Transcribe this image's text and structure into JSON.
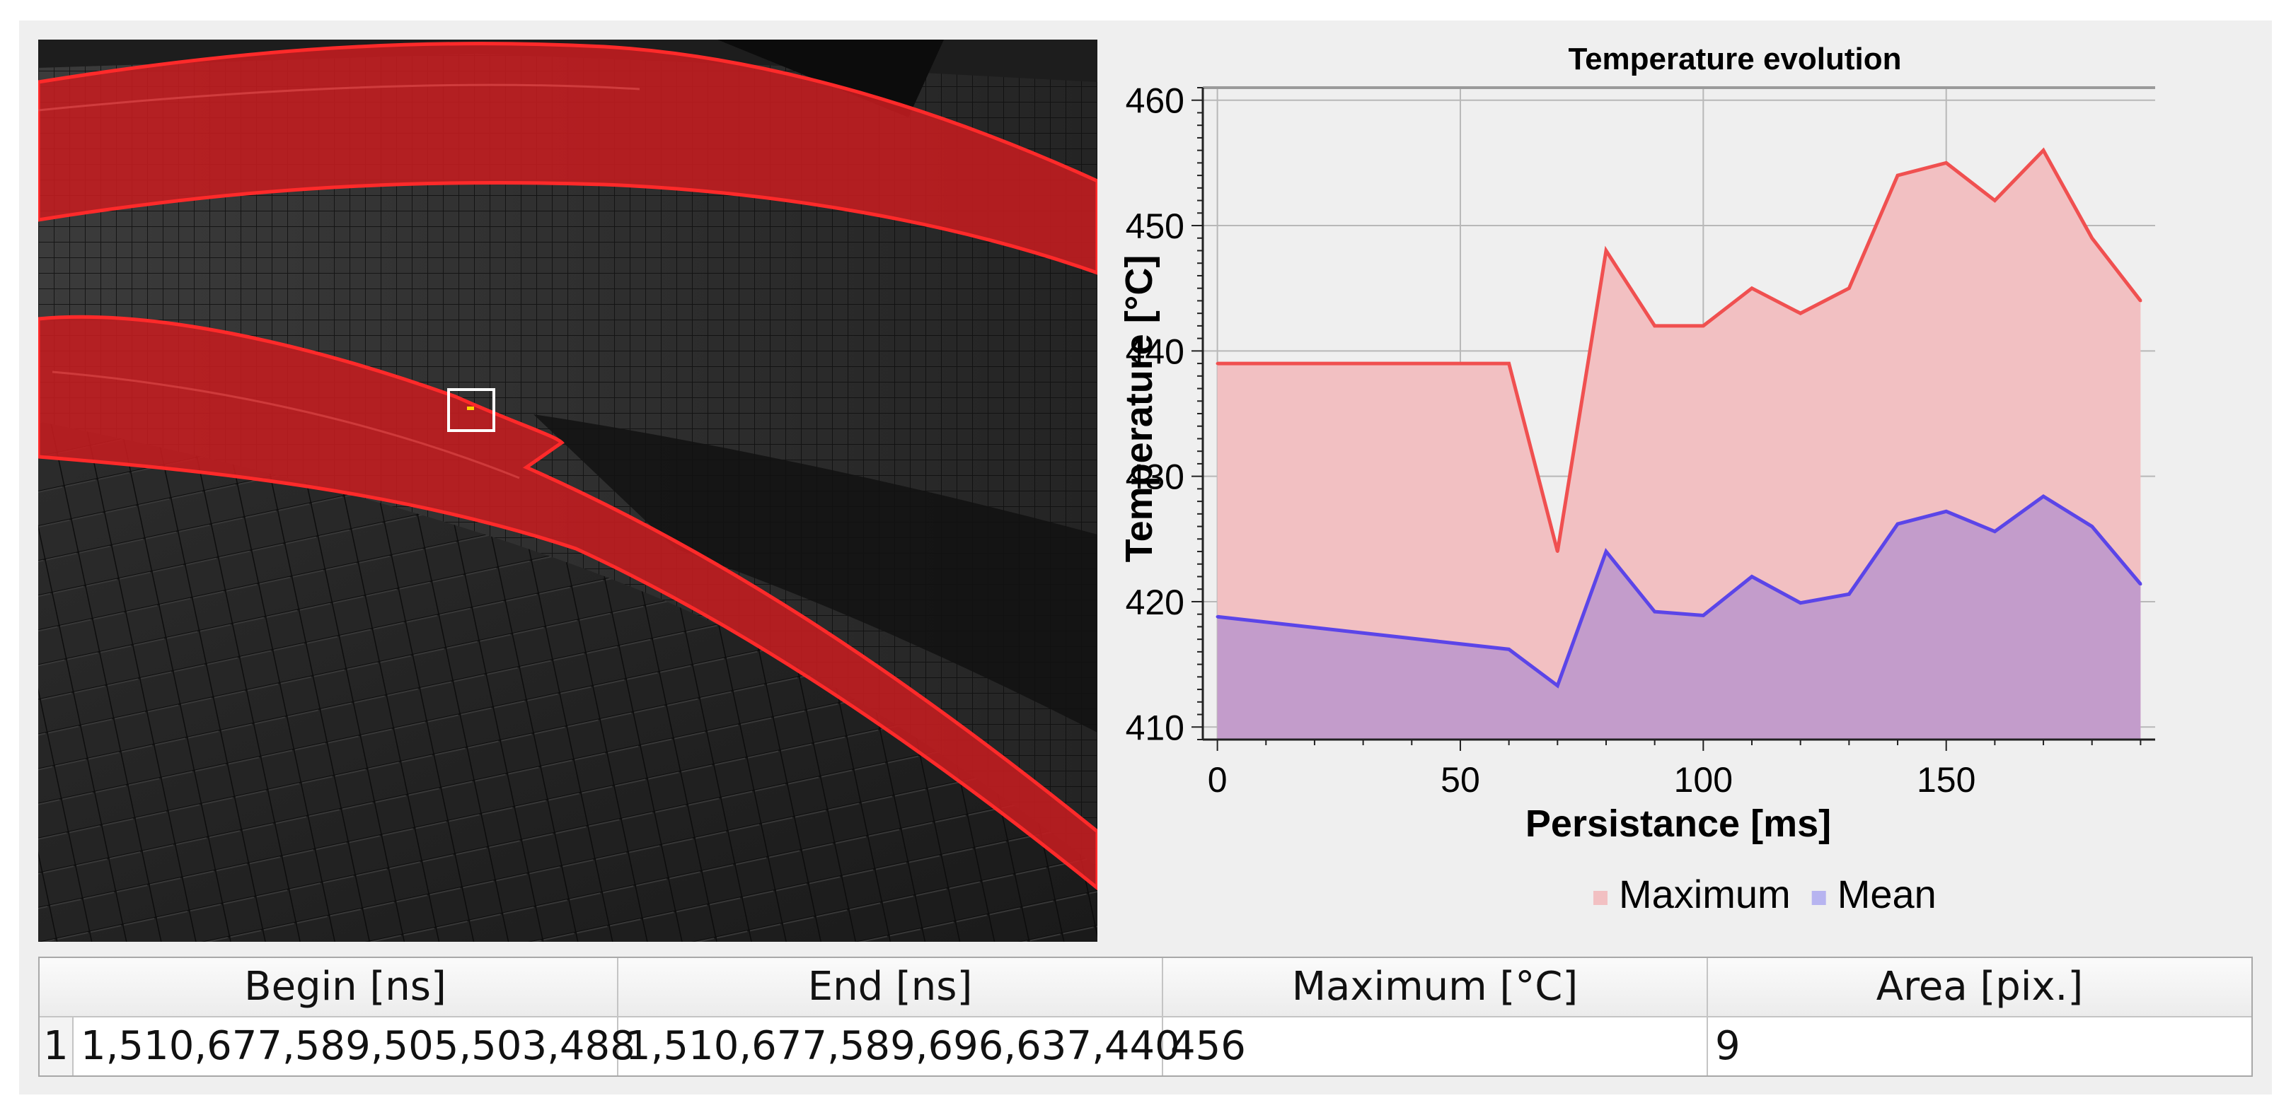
{
  "colors": {
    "maximum_line": "#f05050",
    "maximum_fill": "#f2c0c2",
    "mean_line": "#5b45e8",
    "mean_fill": "#c09acb",
    "overlay_red": "#c51d20",
    "selection_box": "#ffffff",
    "hotspot": "#ffd400"
  },
  "chart_data": {
    "type": "area",
    "title": "Temperature evolution",
    "xlabel": "Persistance [ms]",
    "ylabel": "Temperature [°C]",
    "xlim": [
      -3,
      193
    ],
    "ylim": [
      409,
      461
    ],
    "x_ticks": [
      0,
      50,
      100,
      150
    ],
    "y_ticks": [
      410,
      420,
      430,
      440,
      450,
      460
    ],
    "grid": true,
    "legend_position": "bottom-center",
    "series": [
      {
        "name": "Maximum",
        "color": "#f05050",
        "x": [
          0,
          60,
          70,
          80,
          90,
          100,
          110,
          120,
          130,
          140,
          150,
          160,
          170,
          180,
          190
        ],
        "values": [
          439,
          439,
          424,
          448,
          442,
          442,
          445,
          443,
          445,
          454,
          455,
          452,
          456,
          449,
          444
        ]
      },
      {
        "name": "Mean",
        "color": "#5b45e8",
        "x": [
          0,
          60,
          70,
          80,
          90,
          100,
          110,
          120,
          130,
          140,
          150,
          160,
          170,
          180,
          190
        ],
        "values": [
          418.8,
          416.2,
          413.3,
          424.0,
          419.2,
          418.9,
          422.0,
          419.9,
          420.6,
          426.2,
          427.2,
          425.6,
          428.4,
          426.0,
          421.4
        ]
      }
    ]
  },
  "table": {
    "headers": [
      "Begin [ns]",
      "End [ns]",
      "Maximum [°C]",
      "Area [pix.]"
    ],
    "rows": [
      {
        "index": "1",
        "begin": "1,510,677,589,505,503,488",
        "end": "1,510,677,589,696,637,440",
        "maximum": "456",
        "area": "9"
      }
    ]
  }
}
